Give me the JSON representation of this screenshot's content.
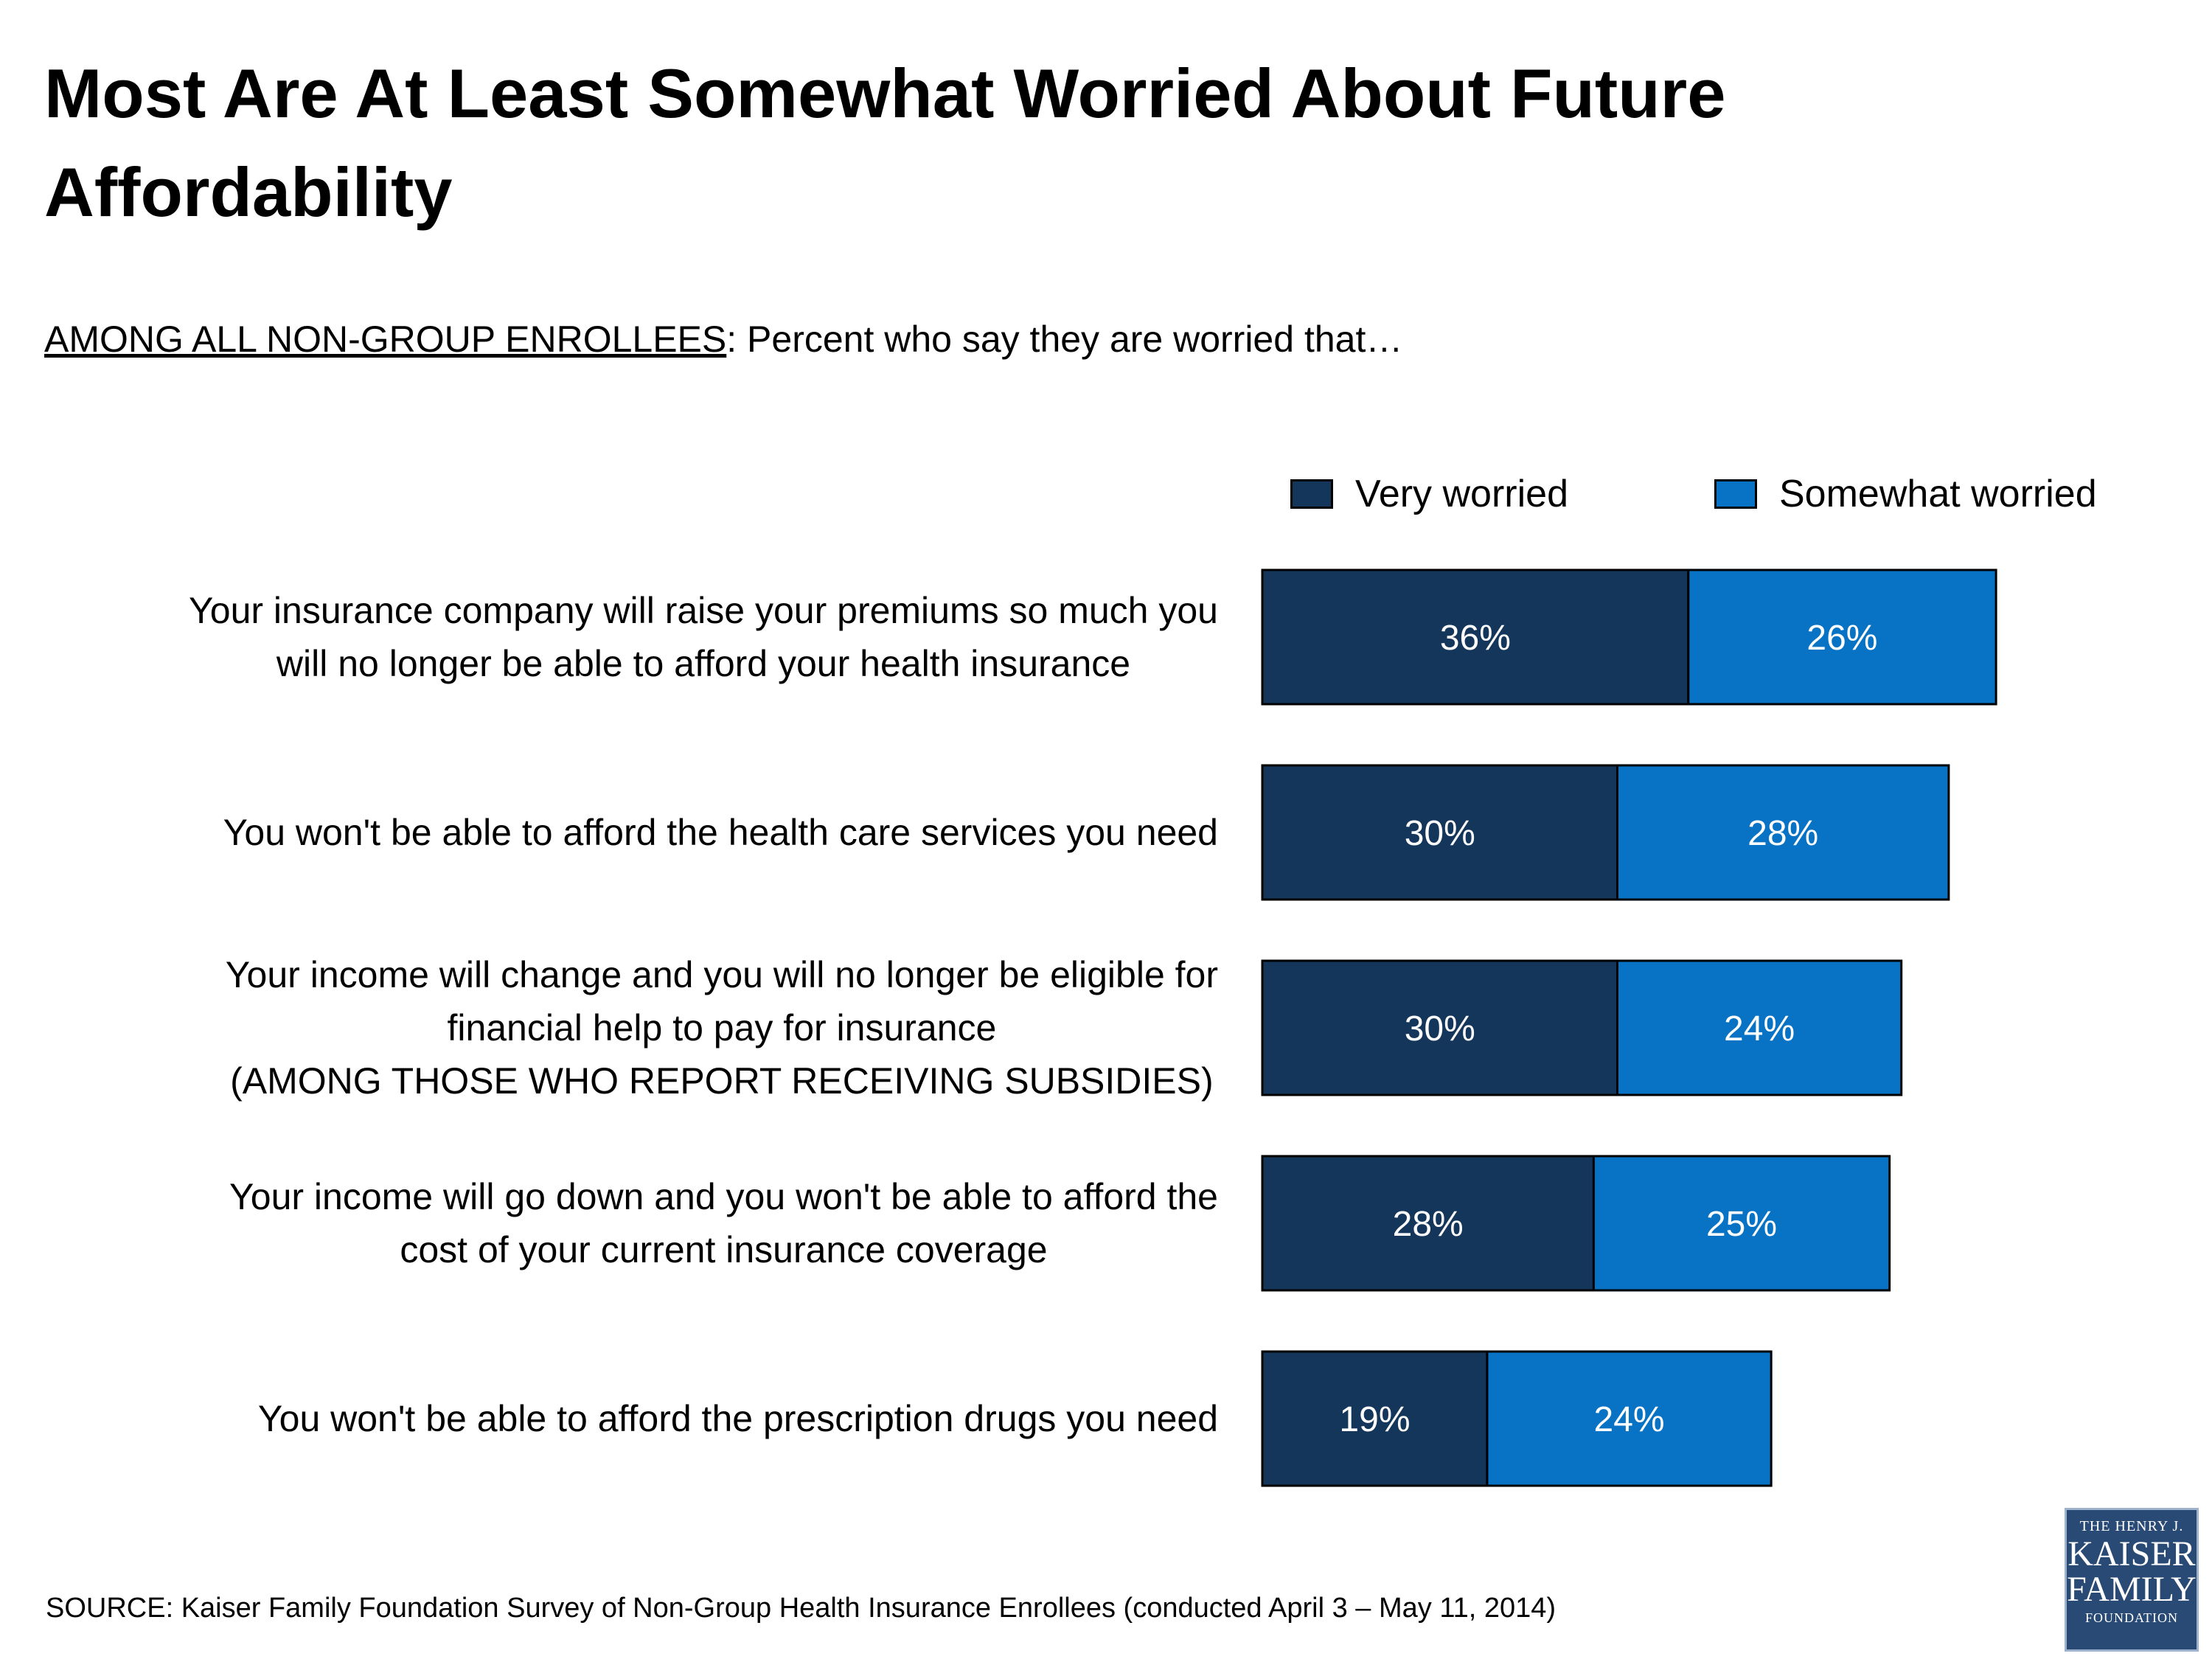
{
  "title": "Most Are At Least Somewhat Worried About Future Affordability",
  "subtitle": {
    "underlined": "AMONG ALL NON-GROUP ENROLLEES",
    "rest": ": Percent who say they are worried that…"
  },
  "colors": {
    "very": "#15365b",
    "somewhat": "#0872c4",
    "bar_outline": "#000000",
    "label_text": "#ffffff"
  },
  "chart_data": {
    "type": "bar",
    "orientation": "horizontal",
    "stacked": true,
    "categories": [
      [
        "Your insurance company will raise your premiums so much you",
        "will no longer be able to afford your health insurance"
      ],
      [
        "You won't be able to afford the health care services you need"
      ],
      [
        "Your income will change and you will no longer be eligible for",
        "financial help to pay for insurance",
        "(AMONG THOSE WHO REPORT RECEIVING SUBSIDIES)"
      ],
      [
        "Your income will go down and you won't be able to afford the",
        "cost of your current insurance coverage"
      ],
      [
        "You won't be able to afford the prescription drugs you need"
      ]
    ],
    "series": [
      {
        "name": "Very worried",
        "values": [
          36,
          30,
          30,
          28,
          19
        ],
        "labels": [
          "36%",
          "30%",
          "30%",
          "28%",
          "19%"
        ]
      },
      {
        "name": "Somewhat worried",
        "values": [
          26,
          28,
          24,
          25,
          24
        ],
        "labels": [
          "26%",
          "28%",
          "24%",
          "25%",
          "24%"
        ]
      }
    ],
    "legend_position": "top-right",
    "grid": false
  },
  "source": "SOURCE: Kaiser Family Foundation Survey of Non-Group Health Insurance Enrollees (conducted April 3 – May 11, 2014)",
  "logo": {
    "line1": "THE HENRY J.",
    "line2": "KAISER",
    "line3": "FAMILY",
    "line4": "FOUNDATION"
  }
}
